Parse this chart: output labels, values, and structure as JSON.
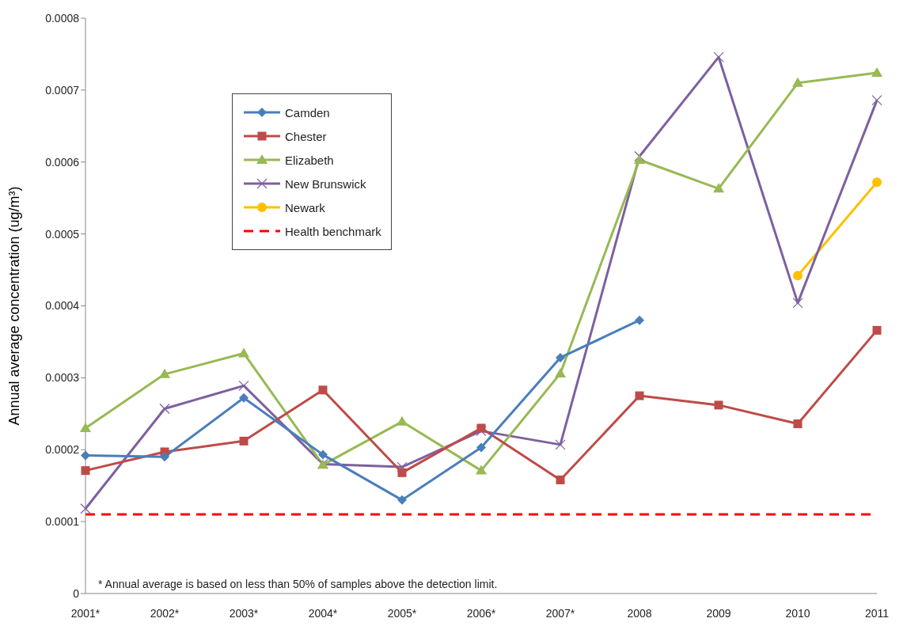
{
  "chart_data": {
    "type": "line",
    "ylabel": "Annual average concentration (ug/m³)",
    "categories": [
      "2001*",
      "2002*",
      "2003*",
      "2004*",
      "2005*",
      "2006*",
      "2007*",
      "2008",
      "2009",
      "2010",
      "2011"
    ],
    "series": [
      {
        "name": "Camden",
        "color": "#4a7ebb",
        "marker": "diamond",
        "values": [
          0.000192,
          0.00019,
          0.000272,
          0.000193,
          0.00013,
          0.000203,
          0.000328,
          0.00038,
          null,
          null,
          null
        ]
      },
      {
        "name": "Chester",
        "color": "#be4b48",
        "marker": "square",
        "values": [
          0.000171,
          0.000197,
          0.000212,
          0.000283,
          0.000168,
          0.00023,
          0.000158,
          0.000275,
          0.000262,
          0.000236,
          0.000366
        ]
      },
      {
        "name": "Elizabeth",
        "color": "#98b954",
        "marker": "triangle",
        "values": [
          0.00023,
          0.000305,
          0.000334,
          0.000179,
          0.000239,
          0.000171,
          0.000306,
          0.000603,
          0.000563,
          0.00071,
          0.000724
        ]
      },
      {
        "name": "New Brunswick",
        "color": "#7d60a0",
        "marker": "cross",
        "values": [
          0.000118,
          0.000257,
          0.000289,
          0.00018,
          0.000176,
          0.000226,
          0.000207,
          0.000608,
          0.000746,
          0.000404,
          0.000686
        ]
      },
      {
        "name": "Newark",
        "color": "#ffc000",
        "marker": "circle",
        "values": [
          null,
          null,
          null,
          null,
          null,
          null,
          null,
          null,
          null,
          0.000442,
          0.000572
        ]
      },
      {
        "name": "Health benchmark",
        "color": "#ff0000",
        "marker": "none",
        "line_style": "dashed",
        "values": [
          0.00011,
          0.00011,
          0.00011,
          0.00011,
          0.00011,
          0.00011,
          0.00011,
          0.00011,
          0.00011,
          0.00011,
          0.00011
        ]
      }
    ],
    "ylim": [
      0,
      0.0008
    ],
    "yticks": [
      0,
      0.0001,
      0.0002,
      0.0003,
      0.0004,
      0.0005,
      0.0006,
      0.0007,
      0.0008
    ],
    "grid": false,
    "legend": "top left",
    "annotations": [
      "* Annual average is based on less than 50% of samples above the detection limit."
    ]
  }
}
